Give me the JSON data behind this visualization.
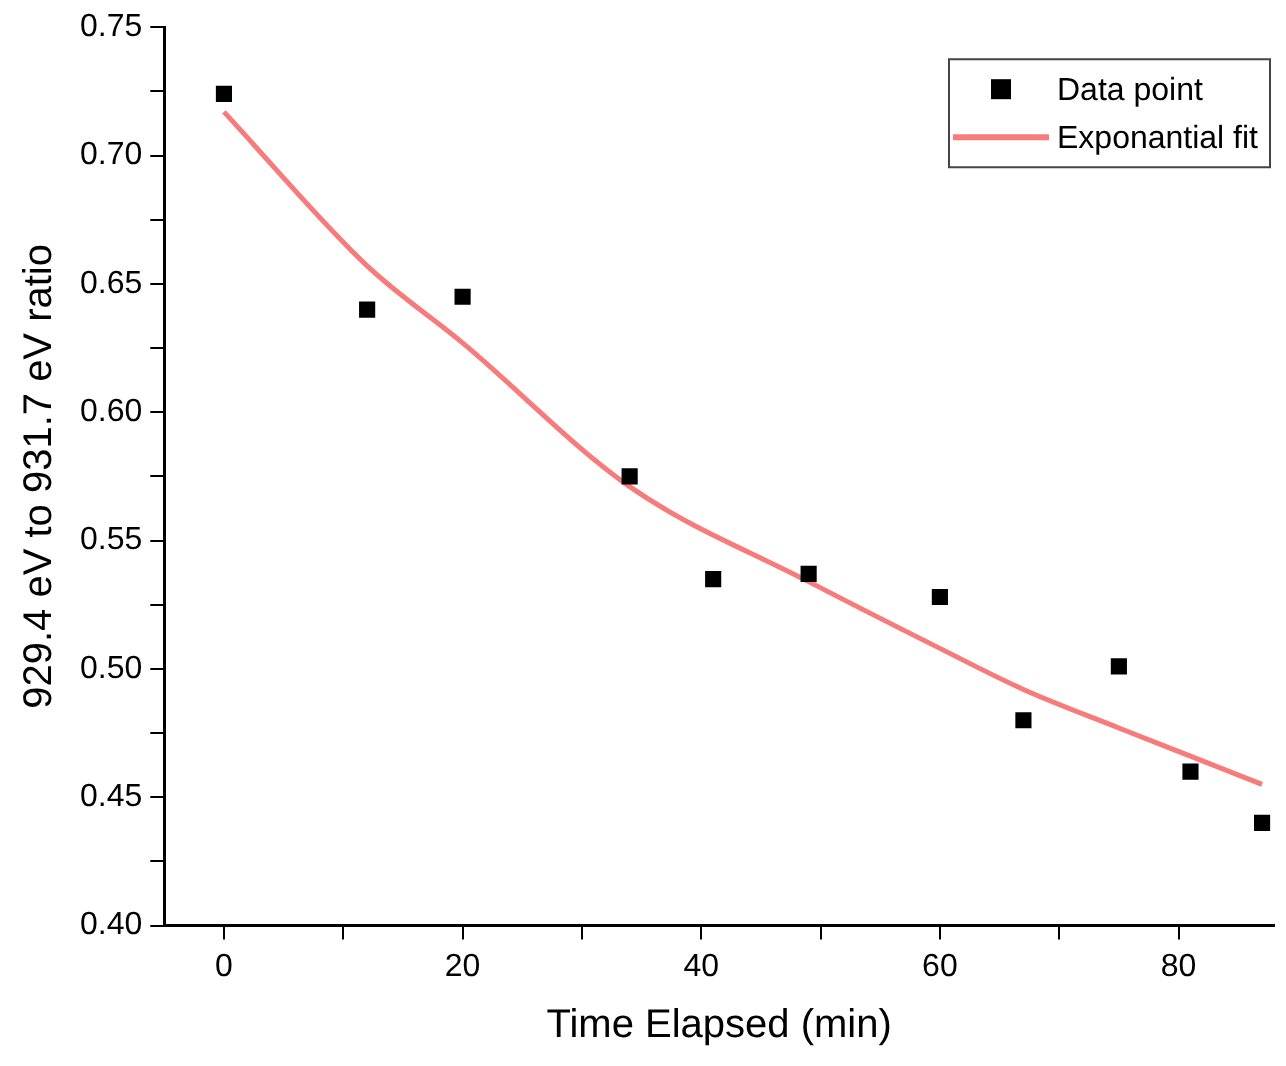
{
  "chart_data": {
    "type": "scatter",
    "xlabel": "Time Elapsed (min)",
    "ylabel": "929.4 eV to 931.7 eV ratio",
    "xlim": [
      -5,
      88
    ],
    "ylim": [
      0.4,
      0.75
    ],
    "xticks": [
      0,
      {
        "value": 10,
        "label": null
      },
      20,
      {
        "value": 30,
        "label": null
      },
      40,
      {
        "value": 50,
        "label": null
      },
      60,
      {
        "value": 70,
        "label": null
      },
      80
    ],
    "yticks": [
      {
        "value": 0.4,
        "label": "0.40"
      },
      {
        "value": 0.425,
        "label": null
      },
      {
        "value": 0.45,
        "label": "0.45"
      },
      {
        "value": 0.475,
        "label": null
      },
      {
        "value": 0.5,
        "label": "0.50"
      },
      {
        "value": 0.525,
        "label": null
      },
      {
        "value": 0.55,
        "label": "0.55"
      },
      {
        "value": 0.575,
        "label": null
      },
      {
        "value": 0.6,
        "label": "0.60"
      },
      {
        "value": 0.625,
        "label": null
      },
      {
        "value": 0.65,
        "label": "0.65"
      },
      {
        "value": 0.675,
        "label": null
      },
      {
        "value": 0.7,
        "label": "0.70"
      },
      {
        "value": 0.725,
        "label": null
      },
      {
        "value": 0.75,
        "label": "0.75"
      }
    ],
    "grid": false,
    "legend": "top right",
    "series": [
      {
        "name": "Data point",
        "marker": "square",
        "color": "#000000",
        "x": [
          0,
          12,
          20,
          34,
          41,
          49,
          60,
          67,
          75,
          81,
          87
        ],
        "values": [
          0.724,
          0.64,
          0.645,
          0.575,
          0.535,
          0.537,
          0.528,
          0.48,
          0.501,
          0.46,
          0.44
        ]
      },
      {
        "name": "Exponantial fit",
        "type": "line",
        "color": "#f77b7b",
        "line_style": "solid",
        "x": [
          0,
          12,
          20,
          34,
          49,
          60,
          67,
          75,
          81,
          87
        ],
        "values": [
          0.717,
          0.657,
          0.627,
          0.571,
          0.534,
          0.508,
          0.492,
          0.477,
          0.466,
          0.455
        ]
      }
    ]
  }
}
